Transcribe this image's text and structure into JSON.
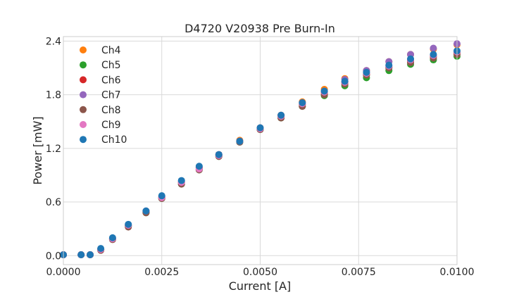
{
  "chart_data": {
    "type": "scatter",
    "title": "D4720 V20938 Pre Burn-In",
    "xlabel": "Current [A]",
    "ylabel": "Power [mW]",
    "xlim": [
      0.0,
      0.01
    ],
    "ylim": [
      -0.1,
      2.45
    ],
    "xticks": [
      0.0,
      0.0025,
      0.005,
      0.0075,
      0.01
    ],
    "xtick_labels": [
      "0.0000",
      "0.0025",
      "0.0050",
      "0.0075",
      "0.0100"
    ],
    "yticks": [
      0.0,
      0.6,
      1.2,
      1.8,
      2.4
    ],
    "ytick_labels": [
      "0.0",
      "0.6",
      "1.2",
      "1.8",
      "2.4"
    ],
    "grid": true,
    "legend_position": "top-left",
    "x": [
      0.0,
      0.00045,
      0.00068,
      0.00095,
      0.00125,
      0.00165,
      0.0021,
      0.0025,
      0.003,
      0.00345,
      0.00395,
      0.00448,
      0.005,
      0.00553,
      0.00607,
      0.00663,
      0.00715,
      0.0077,
      0.00827,
      0.00882,
      0.0094,
      0.01
    ],
    "series": [
      {
        "name": "Ch4",
        "color": "#ff7f0e",
        "values": [
          0.01,
          0.01,
          0.01,
          0.07,
          0.19,
          0.34,
          0.49,
          0.65,
          0.82,
          0.98,
          1.13,
          1.29,
          1.43,
          1.57,
          1.72,
          1.86,
          1.98,
          2.07,
          2.17,
          2.25,
          2.31,
          2.36
        ]
      },
      {
        "name": "Ch5",
        "color": "#2ca02c",
        "values": [
          0.01,
          0.01,
          0.01,
          0.07,
          0.19,
          0.33,
          0.48,
          0.64,
          0.8,
          0.96,
          1.11,
          1.27,
          1.41,
          1.54,
          1.67,
          1.79,
          1.9,
          1.99,
          2.07,
          2.14,
          2.19,
          2.23
        ]
      },
      {
        "name": "Ch6",
        "color": "#d62728",
        "values": [
          0.01,
          0.01,
          0.01,
          0.07,
          0.19,
          0.34,
          0.49,
          0.65,
          0.82,
          0.98,
          1.13,
          1.28,
          1.42,
          1.56,
          1.69,
          1.82,
          1.94,
          2.03,
          2.11,
          2.18,
          2.23,
          2.27
        ]
      },
      {
        "name": "Ch7",
        "color": "#9467bd",
        "values": [
          0.01,
          0.01,
          0.01,
          0.07,
          0.19,
          0.34,
          0.49,
          0.66,
          0.83,
          0.99,
          1.13,
          1.28,
          1.43,
          1.57,
          1.71,
          1.84,
          1.97,
          2.07,
          2.17,
          2.25,
          2.32,
          2.37
        ]
      },
      {
        "name": "Ch8",
        "color": "#8c564b",
        "values": [
          0.01,
          0.01,
          0.01,
          0.06,
          0.18,
          0.32,
          0.48,
          0.64,
          0.8,
          0.96,
          1.11,
          1.27,
          1.41,
          1.54,
          1.67,
          1.8,
          1.92,
          2.02,
          2.1,
          2.16,
          2.21,
          2.25
        ]
      },
      {
        "name": "Ch9",
        "color": "#e377c2",
        "values": [
          0.01,
          0.01,
          0.01,
          0.07,
          0.19,
          0.34,
          0.5,
          0.65,
          0.82,
          0.97,
          1.12,
          1.28,
          1.42,
          1.56,
          1.7,
          1.83,
          1.94,
          2.04,
          2.12,
          2.19,
          2.24,
          2.28
        ]
      },
      {
        "name": "Ch10",
        "color": "#1f77b4",
        "values": [
          0.01,
          0.01,
          0.01,
          0.08,
          0.2,
          0.35,
          0.5,
          0.67,
          0.84,
          1.0,
          1.13,
          1.28,
          1.43,
          1.57,
          1.71,
          1.84,
          1.95,
          2.05,
          2.13,
          2.2,
          2.25,
          2.29
        ]
      }
    ]
  }
}
